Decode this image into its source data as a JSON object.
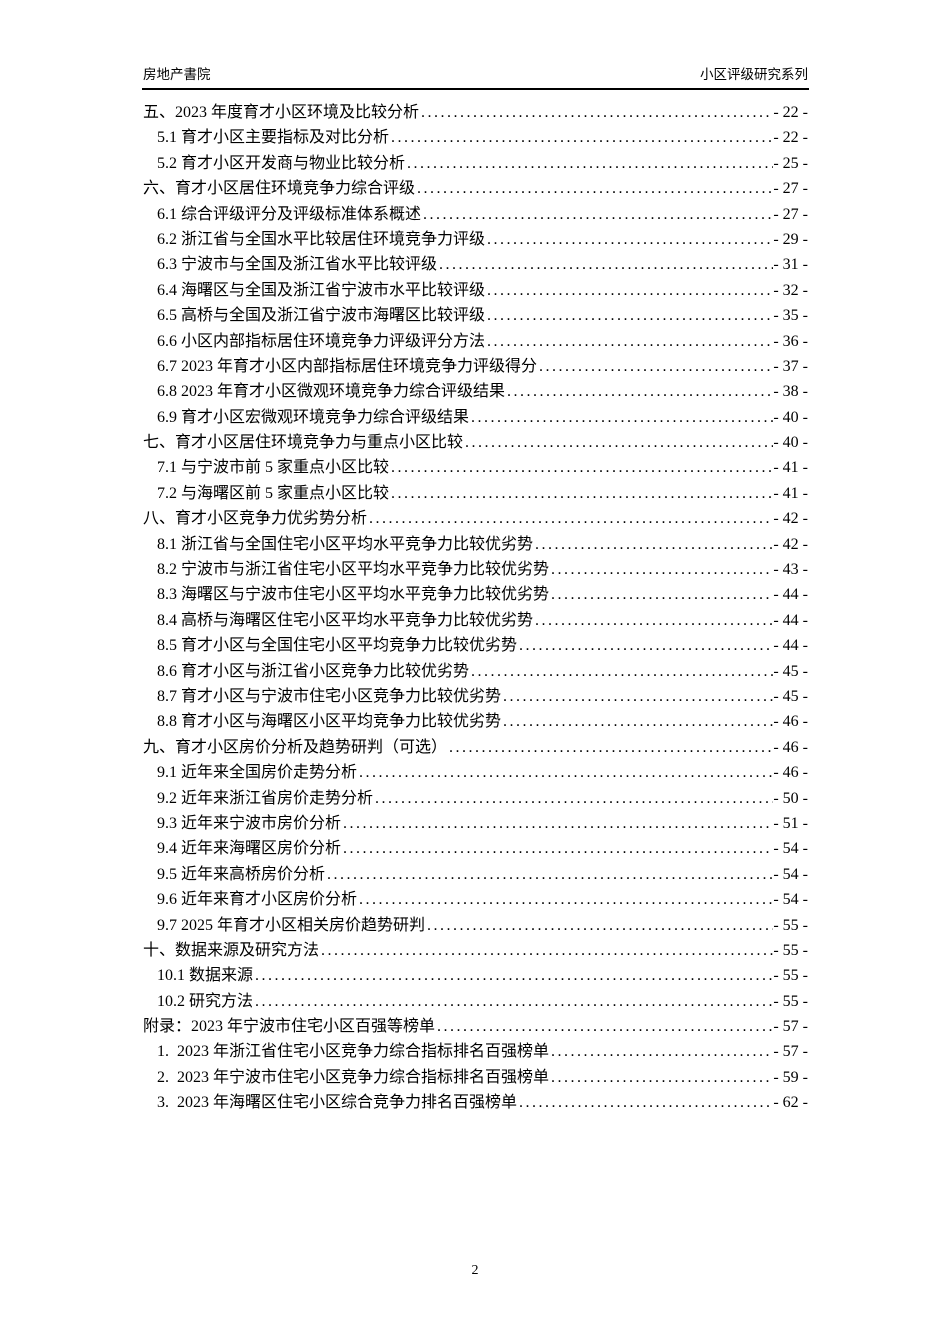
{
  "header": {
    "left": "房地产書院",
    "right": "小区评级研究系列"
  },
  "toc": {
    "items": [
      {
        "level": 1,
        "text": "五、2023 年度育才小区环境及比较分析",
        "page": "- 22 -"
      },
      {
        "level": 2,
        "text": "5.1 育才小区主要指标及对比分析",
        "page": "- 22 -"
      },
      {
        "level": 2,
        "text": "5.2 育才小区开发商与物业比较分析",
        "page": "- 25 -"
      },
      {
        "level": 1,
        "text": "六、育才小区居住环境竞争力综合评级",
        "page": "- 27 -"
      },
      {
        "level": 2,
        "text": "6.1 综合评级评分及评级标准体系概述",
        "page": "- 27 -"
      },
      {
        "level": 2,
        "text": "6.2 浙江省与全国水平比较居住环境竞争力评级",
        "page": "- 29 -"
      },
      {
        "level": 2,
        "text": "6.3 宁波市与全国及浙江省水平比较评级",
        "page": "- 31 -"
      },
      {
        "level": 2,
        "text": "6.4 海曙区与全国及浙江省宁波市水平比较评级",
        "page": "- 32 -"
      },
      {
        "level": 2,
        "text": "6.5 高桥与全国及浙江省宁波市海曙区比较评级",
        "page": "- 35 -"
      },
      {
        "level": 2,
        "text": "6.6 小区内部指标居住环境竞争力评级评分方法",
        "page": "- 36 -"
      },
      {
        "level": 2,
        "text": "6.7 2023 年育才小区内部指标居住环境竞争力评级得分",
        "page": "- 37 -"
      },
      {
        "level": 2,
        "text": "6.8 2023 年育才小区微观环境竞争力综合评级结果",
        "page": "- 38 -"
      },
      {
        "level": 2,
        "text": "6.9 育才小区宏微观环境竞争力综合评级结果",
        "page": "- 40 -"
      },
      {
        "level": 1,
        "text": "七、育才小区居住环境竞争力与重点小区比较",
        "page": "- 40 -"
      },
      {
        "level": 2,
        "text": "7.1 与宁波市前 5 家重点小区比较",
        "page": "- 41 -"
      },
      {
        "level": 2,
        "text": "7.2 与海曙区前 5 家重点小区比较",
        "page": "- 41 -"
      },
      {
        "level": 1,
        "text": "八、育才小区竞争力优劣势分析",
        "page": "- 42 -"
      },
      {
        "level": 2,
        "text": "8.1 浙江省与全国住宅小区平均水平竞争力比较优劣势",
        "page": "- 42 -"
      },
      {
        "level": 2,
        "text": "8.2 宁波市与浙江省住宅小区平均水平竞争力比较优劣势",
        "page": "- 43 -"
      },
      {
        "level": 2,
        "text": "8.3 海曙区与宁波市住宅小区平均水平竞争力比较优劣势",
        "page": "- 44 -"
      },
      {
        "level": 2,
        "text": "8.4 高桥与海曙区住宅小区平均水平竞争力比较优劣势",
        "page": "- 44 -"
      },
      {
        "level": 2,
        "text": "8.5 育才小区与全国住宅小区平均竞争力比较优劣势",
        "page": "- 44 -"
      },
      {
        "level": 2,
        "text": "8.6 育才小区与浙江省小区竞争力比较优劣势",
        "page": "- 45 -"
      },
      {
        "level": 2,
        "text": "8.7 育才小区与宁波市住宅小区竞争力比较优劣势",
        "page": "- 45 -"
      },
      {
        "level": 2,
        "text": "8.8 育才小区与海曙区小区平均竞争力比较优劣势",
        "page": "- 46 -"
      },
      {
        "level": 1,
        "text": "九、育才小区房价分析及趋势研判（可选）",
        "page": "- 46 -"
      },
      {
        "level": 2,
        "text": "9.1 近年来全国房价走势分析",
        "page": "- 46 -"
      },
      {
        "level": 2,
        "text": "9.2 近年来浙江省房价走势分析",
        "page": "- 50 -"
      },
      {
        "level": 2,
        "text": "9.3 近年来宁波市房价分析",
        "page": "- 51 -"
      },
      {
        "level": 2,
        "text": "9.4 近年来海曙区房价分析",
        "page": "- 54 -"
      },
      {
        "level": 2,
        "text": "9.5 近年来高桥房价分析",
        "page": "- 54 -"
      },
      {
        "level": 2,
        "text": "9.6 近年来育才小区房价分析",
        "page": "- 54 -"
      },
      {
        "level": 2,
        "text": "9.7 2025 年育才小区相关房价趋势研判",
        "page": "- 55 -"
      },
      {
        "level": 1,
        "text": "十、数据来源及研究方法",
        "page": "- 55 -"
      },
      {
        "level": 2,
        "text": "10.1 数据来源",
        "page": "- 55 -"
      },
      {
        "level": 2,
        "text": "10.2 研究方法",
        "page": "- 55 -"
      },
      {
        "level": 1,
        "text": "附录：2023 年宁波市住宅小区百强等榜单",
        "page": "- 57 -"
      },
      {
        "level": 2,
        "text": "1.  2023 年浙江省住宅小区竞争力综合指标排名百强榜单",
        "page": "- 57 -"
      },
      {
        "level": 2,
        "text": "2.  2023 年宁波市住宅小区竞争力综合指标排名百强榜单",
        "page": "- 59 -"
      },
      {
        "level": 2,
        "text": "3.  2023 年海曙区住宅小区综合竞争力排名百强榜单",
        "page": "- 62 -"
      }
    ]
  },
  "footer": {
    "page_number": "2"
  }
}
